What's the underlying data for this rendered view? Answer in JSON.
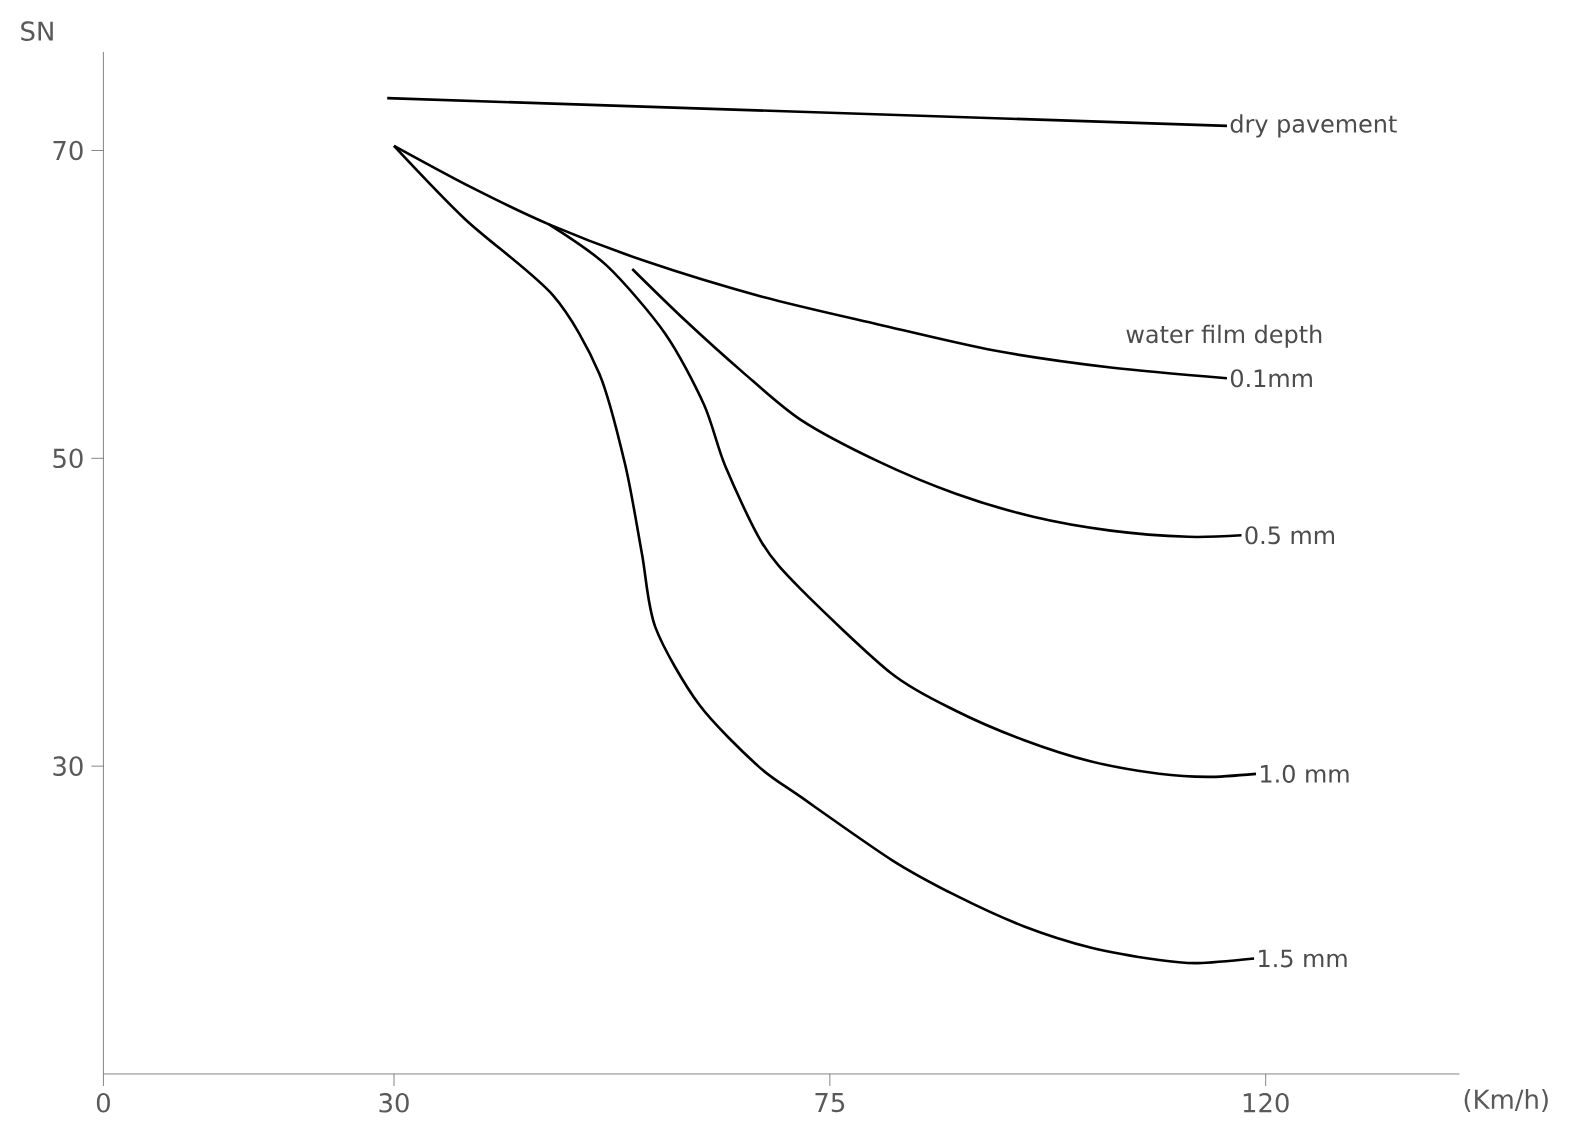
{
  "chart_data": {
    "type": "line",
    "xlabel": "(Km/h)",
    "ylabel": "SN",
    "xlim": [
      0,
      140
    ],
    "ylim": [
      10,
      76.4
    ],
    "xticks": [
      0,
      30,
      75,
      120
    ],
    "yticks": [
      30,
      50,
      70
    ],
    "annotations": [
      "water film depth"
    ],
    "marker": "none",
    "line_style": "solid",
    "series": [
      {
        "name": "dry pavement",
        "color": "#000000",
        "x": [
          29.3,
          116
        ],
        "values": [
          73.4,
          71.6
        ]
      },
      {
        "name": "0.1mm",
        "color": "#000000",
        "x": [
          30,
          38,
          46,
          56,
          68,
          80,
          92,
          104,
          116
        ],
        "values": [
          70.3,
          67.6,
          65.2,
          62.8,
          60.5,
          58.7,
          57.0,
          55.9,
          55.2
        ]
      },
      {
        "name": "0.5 mm",
        "color": "#000000",
        "x": [
          54.6,
          60,
          66,
          72,
          80,
          88,
          96,
          104,
          112,
          117.5
        ],
        "values": [
          62.3,
          59.0,
          55.6,
          52.5,
          49.8,
          47.7,
          46.2,
          45.3,
          44.9,
          45.0
        ]
      },
      {
        "name": "1.0 mm",
        "color": "#000000",
        "x": [
          46,
          52,
          58,
          62,
          64.2,
          68,
          72,
          81.4,
          88,
          95,
          102,
          109,
          114,
          119
        ],
        "values": [
          65.2,
          62.5,
          58.1,
          53.5,
          49.5,
          44.5,
          41.5,
          36.0,
          33.6,
          31.7,
          30.3,
          29.5,
          29.3,
          29.5
        ]
      },
      {
        "name": "1.5 mm",
        "color": "#000000",
        "x": [
          30,
          37.4,
          46.4,
          51.2,
          53.9,
          55.6,
          57,
          61.5,
          67.6,
          72,
          81.4,
          88,
          95,
          102,
          109,
          113,
          118.8
        ],
        "values": [
          70.3,
          65.5,
          60.6,
          55.5,
          49.5,
          43.8,
          39.0,
          34.0,
          30.0,
          28.0,
          23.9,
          21.6,
          19.6,
          18.2,
          17.4,
          17.2,
          17.5
        ]
      }
    ]
  }
}
